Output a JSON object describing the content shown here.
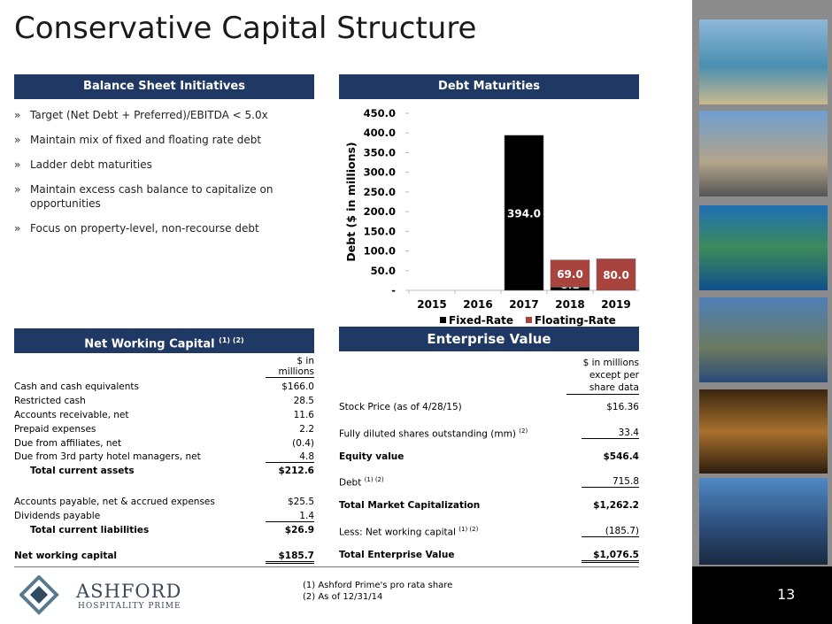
{
  "title": "Conservative Capital Structure",
  "initiatives": {
    "header": "Balance Sheet Initiatives",
    "bullets": [
      "Target (Net Debt + Preferred)/EBITDA < 5.0x",
      "Maintain mix of fixed and floating rate debt",
      "Ladder debt maturities",
      "Maintain excess cash balance to capitalize on opportunities",
      "Focus on property-level, non-recourse debt"
    ]
  },
  "chart_data": {
    "type": "bar",
    "stacked": true,
    "title": "Debt Maturities",
    "y_label": "Debt  ($ in millions)",
    "categories": [
      "2015",
      "2016",
      "2017",
      "2018",
      "2019"
    ],
    "series": [
      {
        "name": "Fixed-Rate",
        "color": "#000000",
        "values": [
          null,
          null,
          394.0,
          8.1,
          null
        ],
        "value_labels": [
          null,
          null,
          "394.0",
          "8.1",
          null
        ]
      },
      {
        "name": "Floating-Rate",
        "color": "#a8433e",
        "values": [
          null,
          null,
          null,
          69.0,
          80.0
        ],
        "value_labels": [
          null,
          null,
          null,
          "69.0",
          "80.0"
        ]
      }
    ],
    "ylim": [
      0,
      450
    ],
    "yticks": [
      {
        "value": 0,
        "label": "-"
      },
      {
        "value": 50,
        "label": "50.0"
      },
      {
        "value": 100,
        "label": "100.0"
      },
      {
        "value": 150,
        "label": "150.0"
      },
      {
        "value": 200,
        "label": "200.0"
      },
      {
        "value": 250,
        "label": "250.0"
      },
      {
        "value": 300,
        "label": "300.0"
      },
      {
        "value": 350,
        "label": "350.0"
      },
      {
        "value": 400,
        "label": "400.0"
      },
      {
        "value": 450,
        "label": "450.0"
      }
    ],
    "legend": "bottom"
  },
  "nwc": {
    "header": "Net Working Capital",
    "header_note": "(1) (2)",
    "column_header": "$ in millions",
    "rows": [
      [
        "Cash and cash equivalents",
        "$166.0"
      ],
      [
        "Restricted cash",
        "28.5"
      ],
      [
        "Accounts receivable, net",
        "11.6"
      ],
      [
        "Prepaid expenses",
        "2.2"
      ],
      [
        "Due from affiliates, net",
        "(0.4)"
      ],
      [
        "Due from 3rd party hotel managers, net",
        "4.8"
      ],
      [
        "Total current assets",
        "$212.6"
      ],
      [
        "Accounts payable, net & accrued expenses",
        "$25.5"
      ],
      [
        "Dividends payable",
        "1.4"
      ],
      [
        "Total current liabilities",
        "$26.9"
      ],
      [
        "Net working capital",
        "$185.7"
      ]
    ]
  },
  "ev": {
    "header": "Enterprise Value",
    "column_header": "$ in millions except per share data",
    "rows": [
      {
        "label": "Stock Price (as of 4/28/15)",
        "value": "$16.36"
      },
      {
        "label": "Fully diluted shares outstanding (mm)",
        "note": "(2)",
        "value": "33.4"
      },
      {
        "label": "Equity value",
        "value": "$546.4"
      },
      {
        "label": "Debt",
        "note": "(1) (2)",
        "value": "715.8"
      },
      {
        "label": "Total Market Capitalization",
        "value": "$1,262.2"
      },
      {
        "label": "Less: Net working capital",
        "note": "(1) (2)",
        "value": "(185.7)"
      },
      {
        "label": "Total Enterprise Value",
        "value": "$1,076.5"
      }
    ]
  },
  "footnotes": [
    "(1) Ashford Prime's pro rata share",
    "(2) As of 12/31/14"
  ],
  "logo": {
    "name": "ASHFORD",
    "tagline": "HOSPITALITY PRIME"
  },
  "page_number": 13
}
